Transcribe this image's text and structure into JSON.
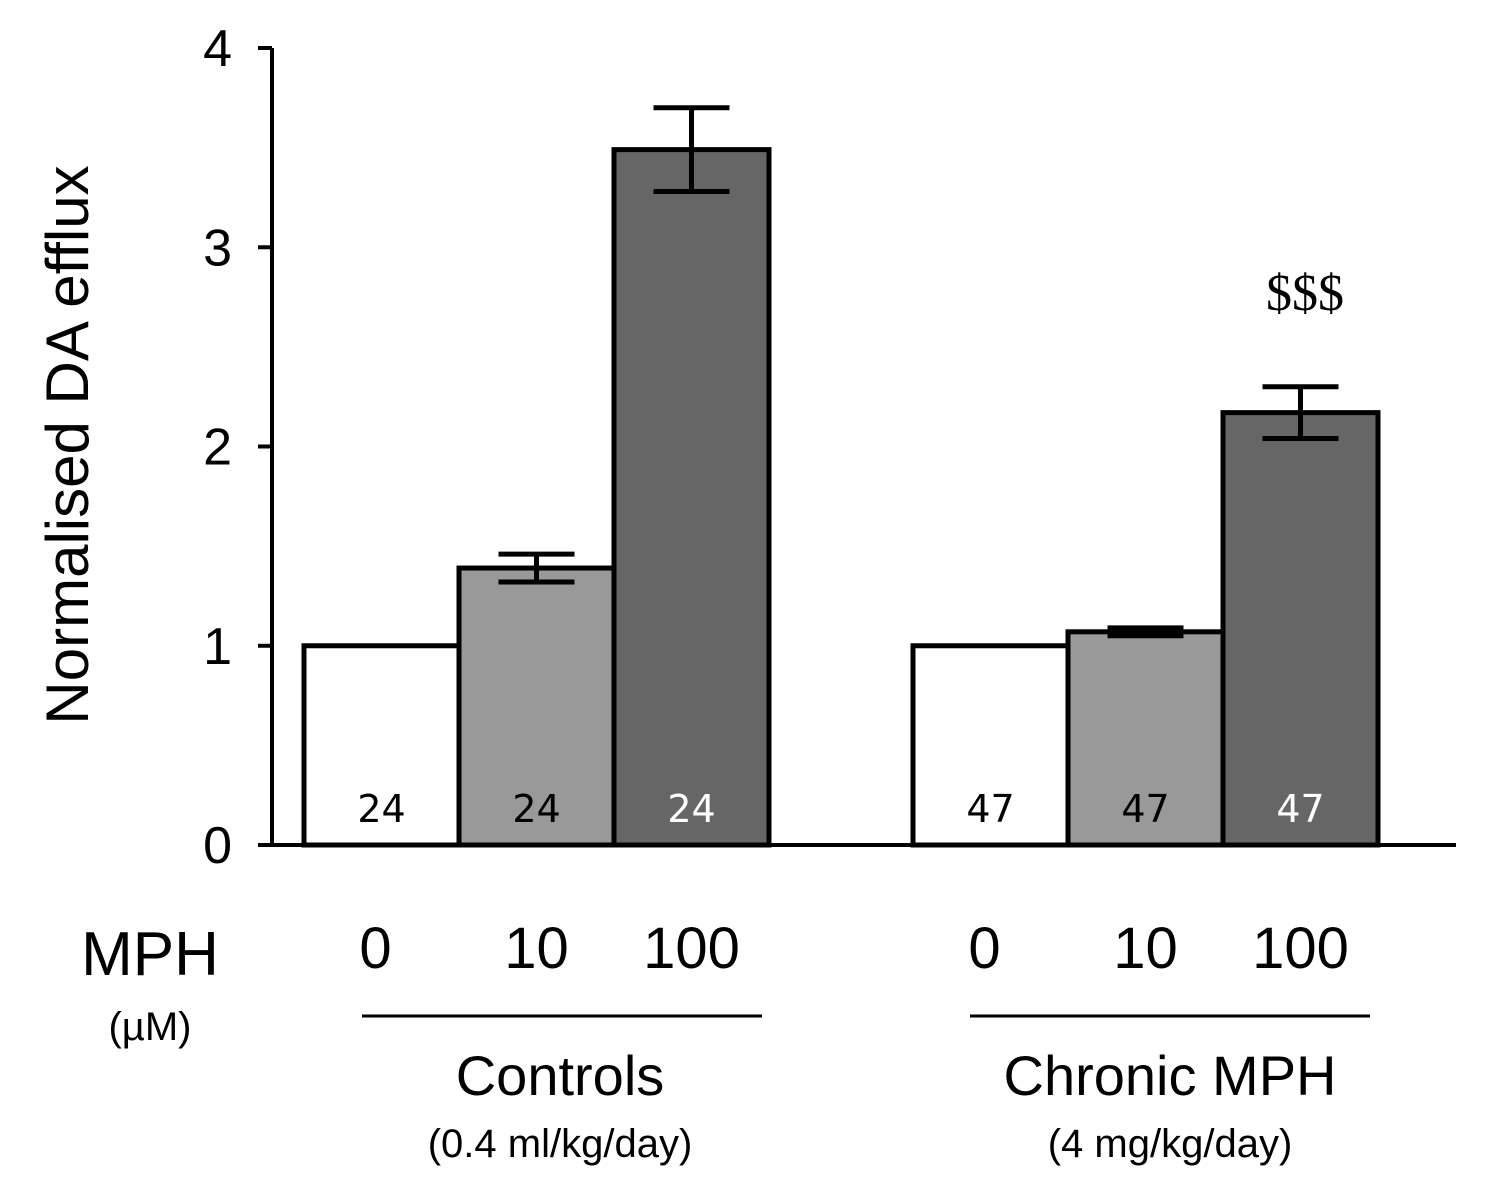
{
  "chart_data": {
    "type": "bar",
    "ylabel": "Normalised DA efflux",
    "ylim": [
      0,
      4
    ],
    "yticks": [
      "0",
      "1",
      "2",
      "3",
      "4"
    ],
    "x_axis_label": "MPH",
    "x_axis_unit": "(µM)",
    "groups": [
      {
        "label": "Controls",
        "sublabel": "(0.4 ml/kg/day)",
        "annotation": "",
        "bars": [
          {
            "dose": "0",
            "value": 1.0,
            "error": 0,
            "n": "24",
            "color": "#ffffff",
            "n_color": "#000000"
          },
          {
            "dose": "10",
            "value": 1.39,
            "error": 0.07,
            "n": "24",
            "color": "#999999",
            "n_color": "#000000"
          },
          {
            "dose": "100",
            "value": 3.49,
            "error": 0.21,
            "n": "24",
            "color": "#666666",
            "n_color": "#ffffff"
          }
        ]
      },
      {
        "label": "Chronic MPH",
        "sublabel": "(4 mg/kg/day)",
        "annotation": "$$$",
        "bars": [
          {
            "dose": "0",
            "value": 1.0,
            "error": 0,
            "n": "47",
            "color": "#ffffff",
            "n_color": "#000000"
          },
          {
            "dose": "10",
            "value": 1.07,
            "error": 0.02,
            "n": "47",
            "color": "#999999",
            "n_color": "#000000"
          },
          {
            "dose": "100",
            "value": 2.17,
            "error": 0.13,
            "n": "47",
            "color": "#666666",
            "n_color": "#ffffff"
          }
        ]
      }
    ]
  }
}
